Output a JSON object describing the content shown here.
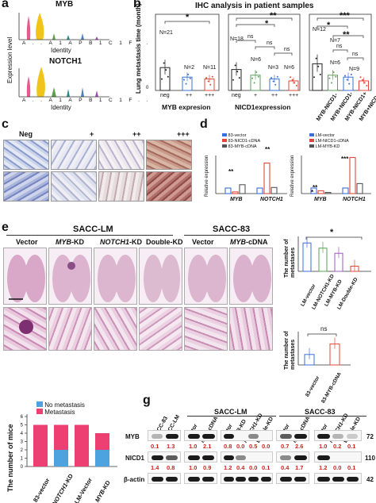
{
  "panel_a": {
    "partial_label": "a",
    "yaxis": "Expression level",
    "xaxis": "Identity",
    "genes": [
      "MYB",
      "NOTCH1"
    ],
    "ticks": [
      "A..",
      "A1",
      "AP",
      "B1",
      "C1",
      "F.."
    ]
  },
  "panel_b": {
    "label": "b",
    "title": "IHC analysis in patient samples",
    "ylabel": "Lung metastasis time (month)",
    "y_ticks": [
      "0",
      "50",
      "100",
      "150",
      "200"
    ],
    "sub1": {
      "xlabel": "MYB expresion",
      "cats": [
        "neg",
        "++",
        "+++"
      ],
      "ns": [
        "N=21",
        "N=2",
        "N=11"
      ],
      "sig": [
        "*"
      ]
    },
    "sub2": {
      "xlabel": "NICD1expression",
      "cats": [
        "neg",
        "+",
        "++",
        "+++"
      ],
      "ns": [
        "N=18",
        "N=6",
        "N=3",
        "N=6"
      ],
      "sig": [
        "**",
        "*",
        "ns",
        "ns",
        "ns"
      ]
    },
    "sub3": {
      "cats": [
        "MYB-NICD1-",
        "MYB+NICD1-",
        "MYB-NICD1+",
        "MYB+NICD1+"
      ],
      "ns": [
        "N=12",
        "N=7",
        "N=6",
        "N=9"
      ],
      "sig": [
        "***",
        "*",
        "**",
        "ns",
        "ns"
      ]
    }
  },
  "panel_c": {
    "label": "c",
    "cols": [
      "Neg",
      "+",
      "++",
      "+++"
    ]
  },
  "panel_d": {
    "label": "d",
    "ylabel": "Relative expression",
    "left": {
      "legend": [
        "83-vector",
        "83-NICD1-cDNA",
        "83-MYB-cDNA"
      ],
      "cats": [
        "MYB",
        "NOTCH1"
      ],
      "sig": [
        "**",
        "**"
      ]
    },
    "right": {
      "legend": [
        "LM-vector",
        "LM-NICD1-cDNA",
        "LM-MYB-KD"
      ],
      "cats": [
        "MYB",
        "NOTCH1"
      ],
      "sig": [
        "**",
        "*",
        "***"
      ]
    }
  },
  "panel_e": {
    "label": "e",
    "groups": [
      "SACC-LM",
      "SACC-83"
    ],
    "cols": [
      "Vector",
      "MYB-KD",
      "NOTCH1-KD",
      "Double-KD",
      "Vector",
      "MYB-cDNA"
    ],
    "top_chart": {
      "ylabel": "The number of metastases",
      "cats": [
        "LM-vector",
        "LM-NOTCH1-KD",
        "LM-MYB-KD",
        "LM-Double-KD"
      ],
      "sig": "*"
    },
    "bottom_chart": {
      "ylabel": "The number of metastases",
      "cats": [
        "83-vector",
        "83-MYB-cDNA"
      ],
      "sig": "ns"
    }
  },
  "panel_f": {
    "ylabel": "The number of mice",
    "legend": [
      "No metastasis",
      "Metastasis"
    ],
    "cats": [
      "83-vector",
      "NOTCH1-KD",
      "LM-Vector",
      "MYB-KD"
    ],
    "y_ticks": [
      "0",
      "1",
      "2",
      "3",
      "4",
      "5",
      "6"
    ],
    "colors": {
      "no_metastasis": "#4da3e0",
      "metastasis": "#ee3f73"
    }
  },
  "panel_g": {
    "label": "g",
    "groups": [
      "SACC-LM",
      "SACC-83"
    ],
    "lanes_a": [
      "SACC-83",
      "SACC-LM"
    ],
    "lanes_b": [
      "Vector",
      "MYB-cDNA"
    ],
    "lanes_c": [
      "Vector",
      "MYB-KD",
      "NOTCH1-KD",
      "Double-KD"
    ],
    "lanes_d": [
      "Vector",
      "MYB-cDNA"
    ],
    "lanes_e": [
      "Vector",
      "NOTCH1-KD",
      "Double-KD"
    ],
    "rows": [
      "MYB",
      "NICD1",
      "β-actin"
    ],
    "mw": [
      "72",
      "110",
      "42"
    ],
    "myb_a": [
      "0.1",
      "1.3"
    ],
    "myb_b": [
      "1.0",
      "2.1"
    ],
    "myb_c": [
      "0.8",
      "0.0",
      "0.5",
      "0.0"
    ],
    "myb_d": [
      "0.7",
      "2.6"
    ],
    "myb_e": [
      "1.0",
      "0.2",
      "0.1"
    ],
    "nicd_a": [
      "1.4",
      "0.8"
    ],
    "nicd_b": [
      "1.0",
      "0.9"
    ],
    "nicd_c": [
      "1.2",
      "0.4",
      "0.0",
      "0.1"
    ],
    "nicd_d": [
      "0.4",
      "1.7"
    ],
    "nicd_e": [
      "1.2",
      "0.0",
      "0.1"
    ]
  },
  "chart_data": [
    {
      "type": "bar",
      "title": "IHC analysis in patient samples",
      "ylabel": "Lung metastasis time (month)",
      "series": [
        {
          "name": "MYB expresion",
          "categories": [
            "neg",
            "++",
            "+++"
          ],
          "values": [
            60,
            35,
            30
          ]
        },
        {
          "name": "NICD1expression",
          "categories": [
            "neg",
            "+",
            "++",
            "+++"
          ],
          "values": [
            55,
            40,
            30,
            25
          ]
        },
        {
          "categories": [
            "MYB-NICD1-",
            "MYB+NICD1-",
            "MYB-NICD1+",
            "MYB+NICD1+"
          ],
          "values": [
            70,
            40,
            35,
            25
          ]
        }
      ],
      "ylim": [
        0,
        200
      ]
    },
    {
      "type": "bar",
      "title": "",
      "ylabel": "The number of mice",
      "categories": [
        "83-vector",
        "NOTCH1-KD",
        "LM-Vector",
        "MYB-KD"
      ],
      "series": [
        {
          "name": "Metastasis",
          "values": [
            5,
            3,
            5,
            2
          ]
        },
        {
          "name": "No metastasis",
          "values": [
            0,
            2,
            0,
            2
          ]
        }
      ],
      "ylim": [
        0,
        6
      ]
    },
    {
      "type": "bar",
      "ylabel": "The number of metastases",
      "categories": [
        "LM-vector",
        "LM-NOTCH1-KD",
        "LM-MYB-KD",
        "LM-Double-KD"
      ],
      "values": [
        5.5,
        4.5,
        3.5,
        1.0
      ]
    },
    {
      "type": "bar",
      "ylabel": "The number of metastases",
      "categories": [
        "83-vector",
        "83-MYB-cDNA"
      ],
      "values": [
        0.6,
        1.2
      ]
    }
  ]
}
